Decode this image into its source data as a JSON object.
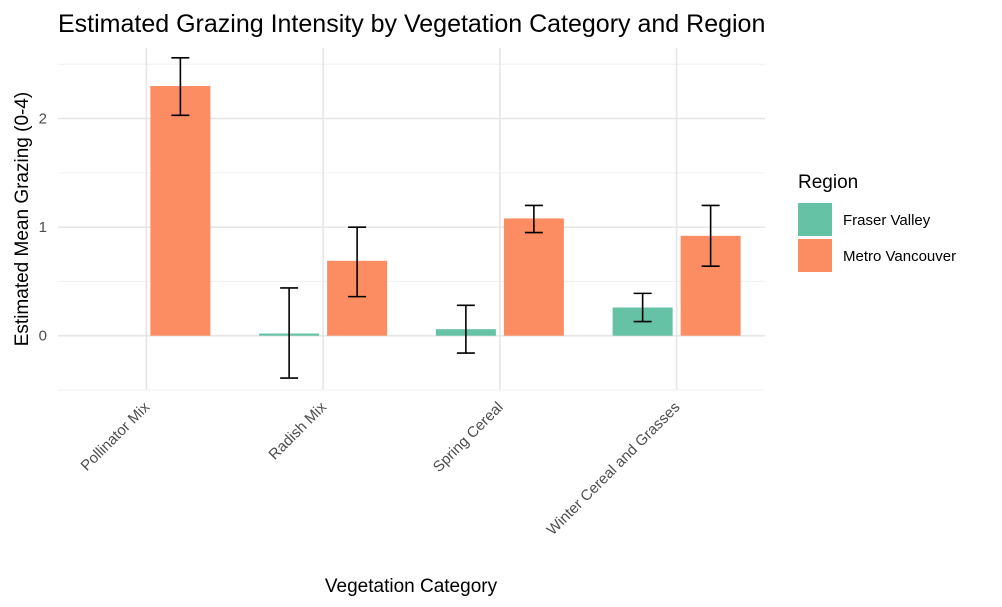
{
  "chart_data": {
    "type": "bar",
    "title": "Estimated Grazing Intensity by Vegetation Category and Region",
    "xlabel": "Vegetation Category",
    "ylabel": "Estimated Mean Grazing (0-4)",
    "categories": [
      "Pollinator Mix",
      "Radish Mix",
      "Spring Cereal",
      "Winter Cereal and Grasses"
    ],
    "series": [
      {
        "name": "Fraser Valley",
        "color": "#66c2a5",
        "values": [
          null,
          0.02,
          0.06,
          0.26
        ],
        "error_low": [
          null,
          -0.39,
          -0.16,
          0.13
        ],
        "error_high": [
          null,
          0.44,
          0.28,
          0.39
        ]
      },
      {
        "name": "Metro Vancouver",
        "color": "#fc8d62",
        "values": [
          2.3,
          0.69,
          1.08,
          0.92
        ],
        "error_low": [
          2.03,
          0.36,
          0.95,
          0.64
        ],
        "error_high": [
          2.56,
          1.0,
          1.2,
          1.2
        ]
      }
    ],
    "ylim": [
      -0.5,
      2.65
    ],
    "y_ticks": [
      0,
      1,
      2
    ],
    "y_tick_labels": [
      "0",
      "1",
      "2"
    ],
    "grid": true,
    "legend": {
      "title": "Region",
      "position": "right"
    }
  }
}
